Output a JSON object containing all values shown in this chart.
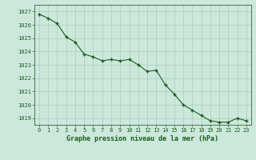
{
  "x": [
    0,
    1,
    2,
    3,
    4,
    5,
    6,
    7,
    8,
    9,
    10,
    11,
    12,
    13,
    14,
    15,
    16,
    17,
    18,
    19,
    20,
    21,
    22,
    23
  ],
  "y": [
    1026.8,
    1026.5,
    1026.1,
    1025.1,
    1024.7,
    1023.8,
    1023.6,
    1023.3,
    1023.4,
    1023.3,
    1023.4,
    1023.0,
    1022.5,
    1022.6,
    1021.5,
    1020.8,
    1020.0,
    1019.6,
    1019.2,
    1018.8,
    1018.7,
    1018.7,
    1019.0,
    1018.8
  ],
  "ylim": [
    1018.5,
    1027.5
  ],
  "yticks": [
    1019,
    1020,
    1021,
    1022,
    1023,
    1024,
    1025,
    1026,
    1027
  ],
  "xticks": [
    0,
    1,
    2,
    3,
    4,
    5,
    6,
    7,
    8,
    9,
    10,
    11,
    12,
    13,
    14,
    15,
    16,
    17,
    18,
    19,
    20,
    21,
    22,
    23
  ],
  "xlabel": "Graphe pression niveau de la mer (hPa)",
  "line_color": "#1a5c1a",
  "marker": "+",
  "marker_color": "#1a5c1a",
  "bg_color": "#cce8dd",
  "grid_color": "#a8ccbb",
  "axis_color": "#336633",
  "label_color": "#1a5c1a",
  "title_color": "#1a5c1a",
  "tick_fontsize": 5.0,
  "xlabel_fontsize": 6.0
}
